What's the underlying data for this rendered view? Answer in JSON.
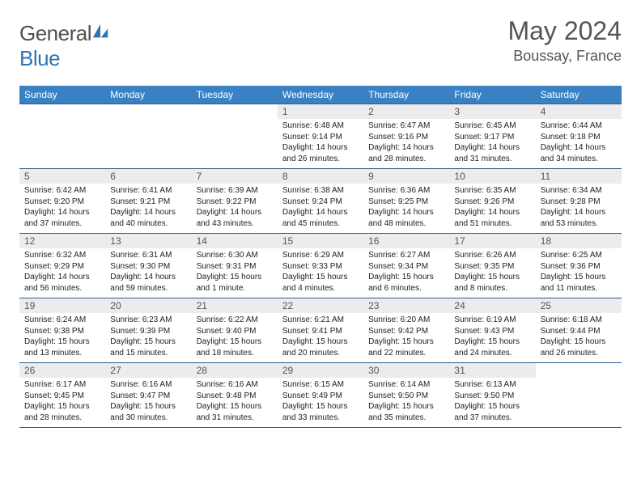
{
  "brand": {
    "name_a": "General",
    "name_b": "Blue"
  },
  "title": "May 2024",
  "location": "Boussay, France",
  "colors": {
    "header_bg": "#3a81c4",
    "rule": "#2d5c8a",
    "daynum_bg": "#ececec",
    "logo_blue": "#2f74b5"
  },
  "weekdays": [
    "Sunday",
    "Monday",
    "Tuesday",
    "Wednesday",
    "Thursday",
    "Friday",
    "Saturday"
  ],
  "weeks": [
    [
      {
        "n": "",
        "sr": "",
        "ss": "",
        "dl": ""
      },
      {
        "n": "",
        "sr": "",
        "ss": "",
        "dl": ""
      },
      {
        "n": "",
        "sr": "",
        "ss": "",
        "dl": ""
      },
      {
        "n": "1",
        "sr": "6:48 AM",
        "ss": "9:14 PM",
        "dl": "14 hours and 26 minutes."
      },
      {
        "n": "2",
        "sr": "6:47 AM",
        "ss": "9:16 PM",
        "dl": "14 hours and 28 minutes."
      },
      {
        "n": "3",
        "sr": "6:45 AM",
        "ss": "9:17 PM",
        "dl": "14 hours and 31 minutes."
      },
      {
        "n": "4",
        "sr": "6:44 AM",
        "ss": "9:18 PM",
        "dl": "14 hours and 34 minutes."
      }
    ],
    [
      {
        "n": "5",
        "sr": "6:42 AM",
        "ss": "9:20 PM",
        "dl": "14 hours and 37 minutes."
      },
      {
        "n": "6",
        "sr": "6:41 AM",
        "ss": "9:21 PM",
        "dl": "14 hours and 40 minutes."
      },
      {
        "n": "7",
        "sr": "6:39 AM",
        "ss": "9:22 PM",
        "dl": "14 hours and 43 minutes."
      },
      {
        "n": "8",
        "sr": "6:38 AM",
        "ss": "9:24 PM",
        "dl": "14 hours and 45 minutes."
      },
      {
        "n": "9",
        "sr": "6:36 AM",
        "ss": "9:25 PM",
        "dl": "14 hours and 48 minutes."
      },
      {
        "n": "10",
        "sr": "6:35 AM",
        "ss": "9:26 PM",
        "dl": "14 hours and 51 minutes."
      },
      {
        "n": "11",
        "sr": "6:34 AM",
        "ss": "9:28 PM",
        "dl": "14 hours and 53 minutes."
      }
    ],
    [
      {
        "n": "12",
        "sr": "6:32 AM",
        "ss": "9:29 PM",
        "dl": "14 hours and 56 minutes."
      },
      {
        "n": "13",
        "sr": "6:31 AM",
        "ss": "9:30 PM",
        "dl": "14 hours and 59 minutes."
      },
      {
        "n": "14",
        "sr": "6:30 AM",
        "ss": "9:31 PM",
        "dl": "15 hours and 1 minute."
      },
      {
        "n": "15",
        "sr": "6:29 AM",
        "ss": "9:33 PM",
        "dl": "15 hours and 4 minutes."
      },
      {
        "n": "16",
        "sr": "6:27 AM",
        "ss": "9:34 PM",
        "dl": "15 hours and 6 minutes."
      },
      {
        "n": "17",
        "sr": "6:26 AM",
        "ss": "9:35 PM",
        "dl": "15 hours and 8 minutes."
      },
      {
        "n": "18",
        "sr": "6:25 AM",
        "ss": "9:36 PM",
        "dl": "15 hours and 11 minutes."
      }
    ],
    [
      {
        "n": "19",
        "sr": "6:24 AM",
        "ss": "9:38 PM",
        "dl": "15 hours and 13 minutes."
      },
      {
        "n": "20",
        "sr": "6:23 AM",
        "ss": "9:39 PM",
        "dl": "15 hours and 15 minutes."
      },
      {
        "n": "21",
        "sr": "6:22 AM",
        "ss": "9:40 PM",
        "dl": "15 hours and 18 minutes."
      },
      {
        "n": "22",
        "sr": "6:21 AM",
        "ss": "9:41 PM",
        "dl": "15 hours and 20 minutes."
      },
      {
        "n": "23",
        "sr": "6:20 AM",
        "ss": "9:42 PM",
        "dl": "15 hours and 22 minutes."
      },
      {
        "n": "24",
        "sr": "6:19 AM",
        "ss": "9:43 PM",
        "dl": "15 hours and 24 minutes."
      },
      {
        "n": "25",
        "sr": "6:18 AM",
        "ss": "9:44 PM",
        "dl": "15 hours and 26 minutes."
      }
    ],
    [
      {
        "n": "26",
        "sr": "6:17 AM",
        "ss": "9:45 PM",
        "dl": "15 hours and 28 minutes."
      },
      {
        "n": "27",
        "sr": "6:16 AM",
        "ss": "9:47 PM",
        "dl": "15 hours and 30 minutes."
      },
      {
        "n": "28",
        "sr": "6:16 AM",
        "ss": "9:48 PM",
        "dl": "15 hours and 31 minutes."
      },
      {
        "n": "29",
        "sr": "6:15 AM",
        "ss": "9:49 PM",
        "dl": "15 hours and 33 minutes."
      },
      {
        "n": "30",
        "sr": "6:14 AM",
        "ss": "9:50 PM",
        "dl": "15 hours and 35 minutes."
      },
      {
        "n": "31",
        "sr": "6:13 AM",
        "ss": "9:50 PM",
        "dl": "15 hours and 37 minutes."
      },
      {
        "n": "",
        "sr": "",
        "ss": "",
        "dl": ""
      }
    ]
  ],
  "labels": {
    "sunrise": "Sunrise:",
    "sunset": "Sunset:",
    "daylight": "Daylight:"
  }
}
